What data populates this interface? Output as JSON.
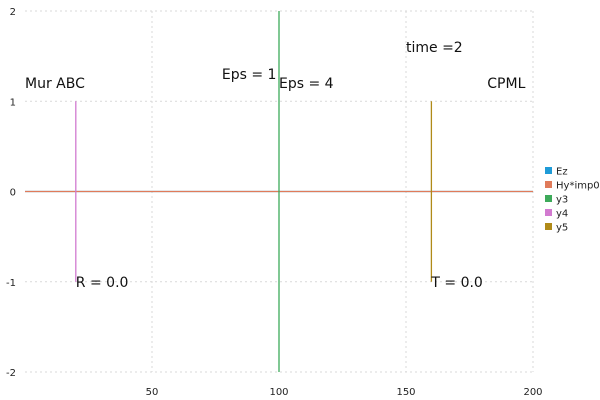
{
  "chart_data": {
    "type": "line",
    "title": "",
    "xlabel": "",
    "ylabel": "",
    "xlim": [
      0,
      200
    ],
    "ylim": [
      -2,
      2
    ],
    "xticks": [
      50,
      100,
      150,
      200
    ],
    "yticks": [
      2,
      1,
      0,
      -1,
      -2
    ],
    "grid": true,
    "legend_position": "right",
    "series": [
      {
        "name": "Ez",
        "color": "#1f9bd7",
        "points": [
          [
            0,
            0
          ],
          [
            200,
            0
          ]
        ]
      },
      {
        "name": "Hy*imp0",
        "color": "#e07b5a",
        "points": [
          [
            0,
            0
          ],
          [
            200,
            0
          ]
        ]
      },
      {
        "name": "y3",
        "color": "#3daa5a",
        "points": [
          [
            100,
            -2
          ],
          [
            100,
            2
          ]
        ]
      },
      {
        "name": "y4",
        "color": "#d27ad0",
        "points": [
          [
            20,
            -1
          ],
          [
            20,
            1
          ]
        ]
      },
      {
        "name": "y5",
        "color": "#b08a18",
        "points": [
          [
            160,
            -1
          ],
          [
            160,
            1
          ]
        ]
      }
    ],
    "annotations": [
      {
        "text": "time =2",
        "x": 150,
        "y": 1.6,
        "anchor": "start"
      },
      {
        "text": "Mur ABC",
        "x": 0,
        "y": 1.2,
        "anchor": "start"
      },
      {
        "text": "Eps = 1",
        "x": 99,
        "y": 1.3,
        "anchor": "end"
      },
      {
        "text": "Eps = 4",
        "x": 100,
        "y": 1.2,
        "anchor": "start"
      },
      {
        "text": "CPML",
        "x": 197,
        "y": 1.2,
        "anchor": "end"
      },
      {
        "text": "R = 0.0",
        "x": 20,
        "y": -1,
        "anchor": "start"
      },
      {
        "text": "T = 0.0",
        "x": 160,
        "y": -1,
        "anchor": "start"
      }
    ]
  }
}
